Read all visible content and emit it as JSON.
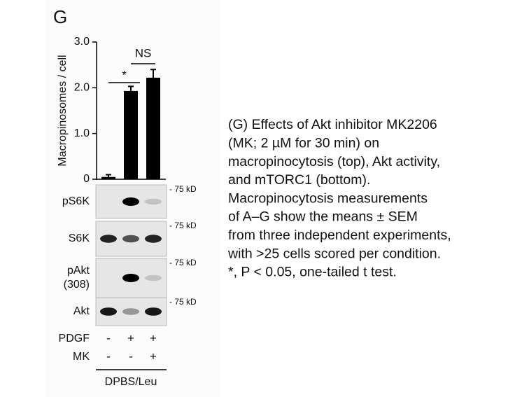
{
  "panel_label": "G",
  "chart_data": {
    "type": "bar",
    "y_label": "Macropinosomes / cell",
    "values": [
      0.05,
      1.93,
      2.22
    ],
    "errors": [
      0.05,
      0.1,
      0.18
    ],
    "color": "#000000",
    "ylim": [
      0,
      3
    ],
    "yticks": [
      0,
      {
        "value": 1,
        "label": "1.0"
      },
      {
        "value": 2,
        "label": "2.0"
      },
      {
        "value": 3,
        "label": "3.0"
      }
    ],
    "annotations": [
      {
        "text": "*"
      },
      {
        "text": "NS"
      }
    ]
  },
  "blots": [
    {
      "label_lines": [
        "pS6K"
      ],
      "marker": "- 75 kD"
    },
    {
      "label_lines": [
        "S6K"
      ],
      "marker": "- 75 kD"
    },
    {
      "label_lines": [
        "pAkt",
        "(308)"
      ],
      "marker": "- 75 kD"
    },
    {
      "label_lines": [
        "Akt"
      ],
      "marker": "- 75 kD"
    }
  ],
  "treatments": [
    {
      "name": "PDGF",
      "signs": [
        "-",
        "+",
        "+"
      ]
    },
    {
      "name": "MK",
      "signs": [
        "-",
        "-",
        "+"
      ]
    }
  ],
  "condition": "DPBS/Leu",
  "caption": [
    "(G) Effects of Akt inhibitor MK2206",
    "(MK; 2 µM for 30 min) on",
    "macropinocytosis (top), Akt activity,",
    "and mTORC1 (bottom).",
    "Macropinocytosis measurements",
    "of A–G show the means ± SEM",
    "from three independent experiments,",
    "with >25 cells scored per condition.",
    "*, P < 0.05, one-tailed t test."
  ]
}
